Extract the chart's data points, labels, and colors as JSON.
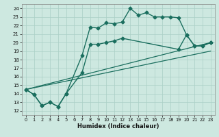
{
  "xlabel": "Humidex (Indice chaleur)",
  "bg_color": "#cde8e0",
  "line_color": "#1a6e5e",
  "grid_color": "#aacfc5",
  "xlim": [
    -0.5,
    23.5
  ],
  "ylim": [
    11.5,
    24.5
  ],
  "yticks": [
    12,
    13,
    14,
    15,
    16,
    17,
    18,
    19,
    20,
    21,
    22,
    23,
    24
  ],
  "xticks": [
    0,
    1,
    2,
    3,
    4,
    5,
    6,
    7,
    8,
    9,
    10,
    11,
    12,
    13,
    14,
    15,
    16,
    17,
    18,
    19,
    20,
    21,
    22,
    23
  ],
  "series": [
    {
      "x": [
        0,
        1,
        2,
        3,
        4,
        5,
        7,
        8,
        9,
        10,
        11,
        12,
        13,
        14,
        15,
        16,
        17,
        18,
        19,
        20,
        21,
        22,
        23
      ],
      "y": [
        14.5,
        13.9,
        12.6,
        13.0,
        12.5,
        14.0,
        18.5,
        21.8,
        21.7,
        22.3,
        22.2,
        22.4,
        24.0,
        23.2,
        23.5,
        23.0,
        23.0,
        23.0,
        22.9,
        20.9,
        19.6,
        19.6,
        20.0
      ],
      "marker": "D",
      "markersize": 2.5,
      "linewidth": 1.0
    },
    {
      "x": [
        0,
        1,
        2,
        3,
        4,
        5,
        7,
        8,
        9,
        10,
        11,
        12,
        19,
        20,
        21,
        22,
        23
      ],
      "y": [
        14.5,
        13.9,
        12.6,
        13.0,
        12.5,
        14.0,
        16.5,
        19.8,
        19.8,
        20.0,
        20.2,
        20.5,
        19.2,
        20.9,
        19.6,
        19.6,
        20.0
      ],
      "marker": "D",
      "markersize": 2.5,
      "linewidth": 1.0
    },
    {
      "x": [
        0,
        23
      ],
      "y": [
        14.5,
        20.0
      ],
      "marker": null,
      "markersize": 0,
      "linewidth": 0.9
    },
    {
      "x": [
        0,
        23
      ],
      "y": [
        14.5,
        19.0
      ],
      "marker": null,
      "markersize": 0,
      "linewidth": 0.9
    }
  ]
}
